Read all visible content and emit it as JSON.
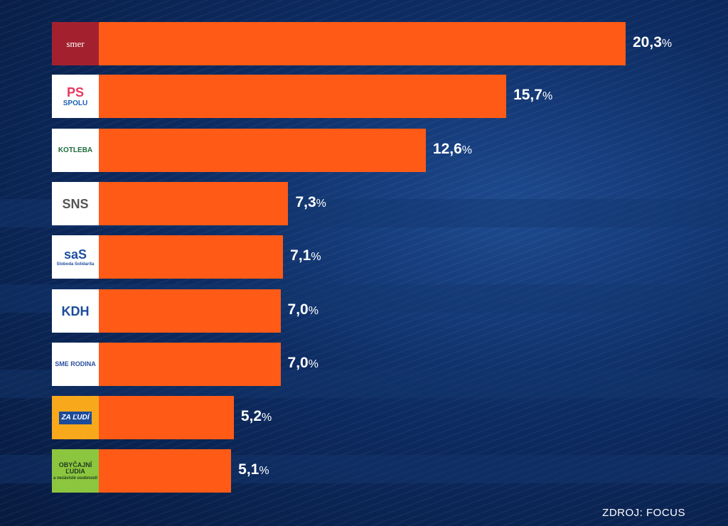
{
  "chart_data": {
    "type": "bar",
    "orientation": "horizontal",
    "categories": [
      "SMER",
      "PS-SPOLU",
      "Kotleba ĽSNS",
      "SNS",
      "SaS",
      "KDH",
      "SME RODINA",
      "ZA ĽUDÍ",
      "OBYČAJNÍ ĽUDIA"
    ],
    "values": [
      20.3,
      15.7,
      12.6,
      7.3,
      7.1,
      7.0,
      7.0,
      5.2,
      5.1
    ],
    "value_labels": [
      "20,3",
      "15,7",
      "12,6",
      "7,3",
      "7,1",
      "7,0",
      "7,0",
      "5,2",
      "5,1"
    ],
    "unit": "%",
    "xlim": [
      0,
      20.3
    ],
    "logos": [
      {
        "text": "smer",
        "bg": "#a3212f",
        "fg": "#ffffff"
      },
      {
        "text": "PS",
        "sub": "SPOLU",
        "bg": "#ffffff",
        "fg": "#e8365f"
      },
      {
        "text": "KOTLEBA",
        "bg": "#ffffff",
        "fg": "#1d6b3a"
      },
      {
        "text": "SNS",
        "bg": "#ffffff",
        "fg": "#555555"
      },
      {
        "text": "saS",
        "sub": "Sloboda Solidarita",
        "bg": "#ffffff",
        "fg": "#1f4fa1"
      },
      {
        "text": "KDH",
        "bg": "#ffffff",
        "fg": "#1b4b9b"
      },
      {
        "text": "SME RODINA",
        "bg": "#ffffff",
        "fg": "#2a4fa0"
      },
      {
        "text": "ZA ĽUDÍ",
        "bg": "#f7a81b",
        "fg": "#ffffff"
      },
      {
        "text": "OBYČAJNÍ ĽUDIA",
        "sub": "a nezávislé osobnosti",
        "bg": "#8cc63f",
        "fg": "#1e3a1e"
      }
    ],
    "bar_color": "#ff5b16"
  },
  "source": "ZDROJ: FOCUS"
}
